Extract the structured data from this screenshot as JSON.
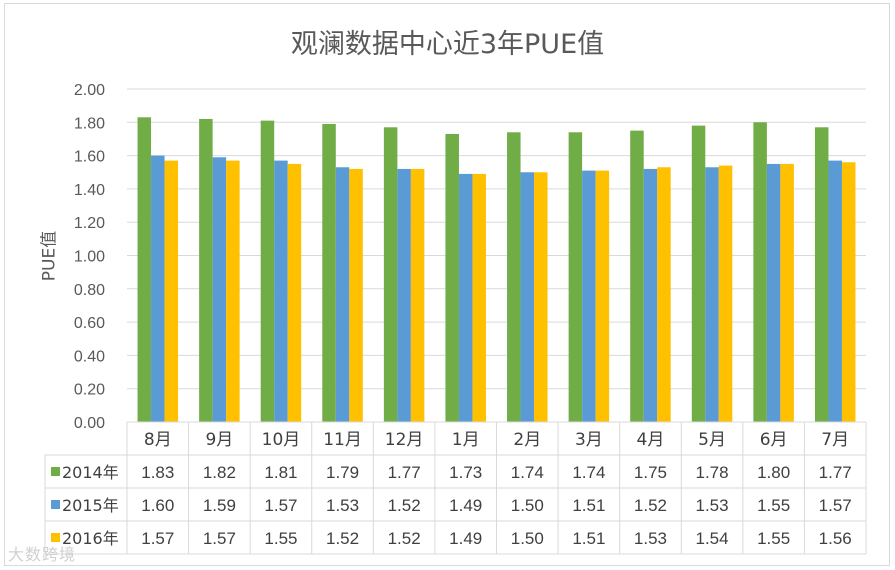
{
  "chart_data": {
    "type": "bar",
    "title": "观澜数据中心近3年PUE值",
    "ylabel": "PUE值",
    "xlabel": "",
    "ylim": [
      0,
      2.0
    ],
    "yticks": [
      "0.00",
      "0.20",
      "0.40",
      "0.60",
      "0.80",
      "1.00",
      "1.20",
      "1.40",
      "1.60",
      "1.80",
      "2.00"
    ],
    "grid": true,
    "legend": "data-table-left",
    "categories": [
      "8月",
      "9月",
      "10月",
      "11月",
      "12月",
      "1月",
      "2月",
      "3月",
      "4月",
      "5月",
      "6月",
      "7月"
    ],
    "series": [
      {
        "name": "2014年",
        "color": "#70ad47",
        "values": [
          1.83,
          1.82,
          1.81,
          1.79,
          1.77,
          1.73,
          1.74,
          1.74,
          1.75,
          1.78,
          1.8,
          1.77
        ]
      },
      {
        "name": "2015年",
        "color": "#5b9bd5",
        "values": [
          1.6,
          1.59,
          1.57,
          1.53,
          1.52,
          1.49,
          1.5,
          1.51,
          1.52,
          1.53,
          1.55,
          1.57
        ]
      },
      {
        "name": "2016年",
        "color": "#ffc000",
        "values": [
          1.57,
          1.57,
          1.55,
          1.52,
          1.52,
          1.49,
          1.5,
          1.51,
          1.53,
          1.54,
          1.55,
          1.56
        ]
      }
    ]
  },
  "watermark": "大数跨境"
}
